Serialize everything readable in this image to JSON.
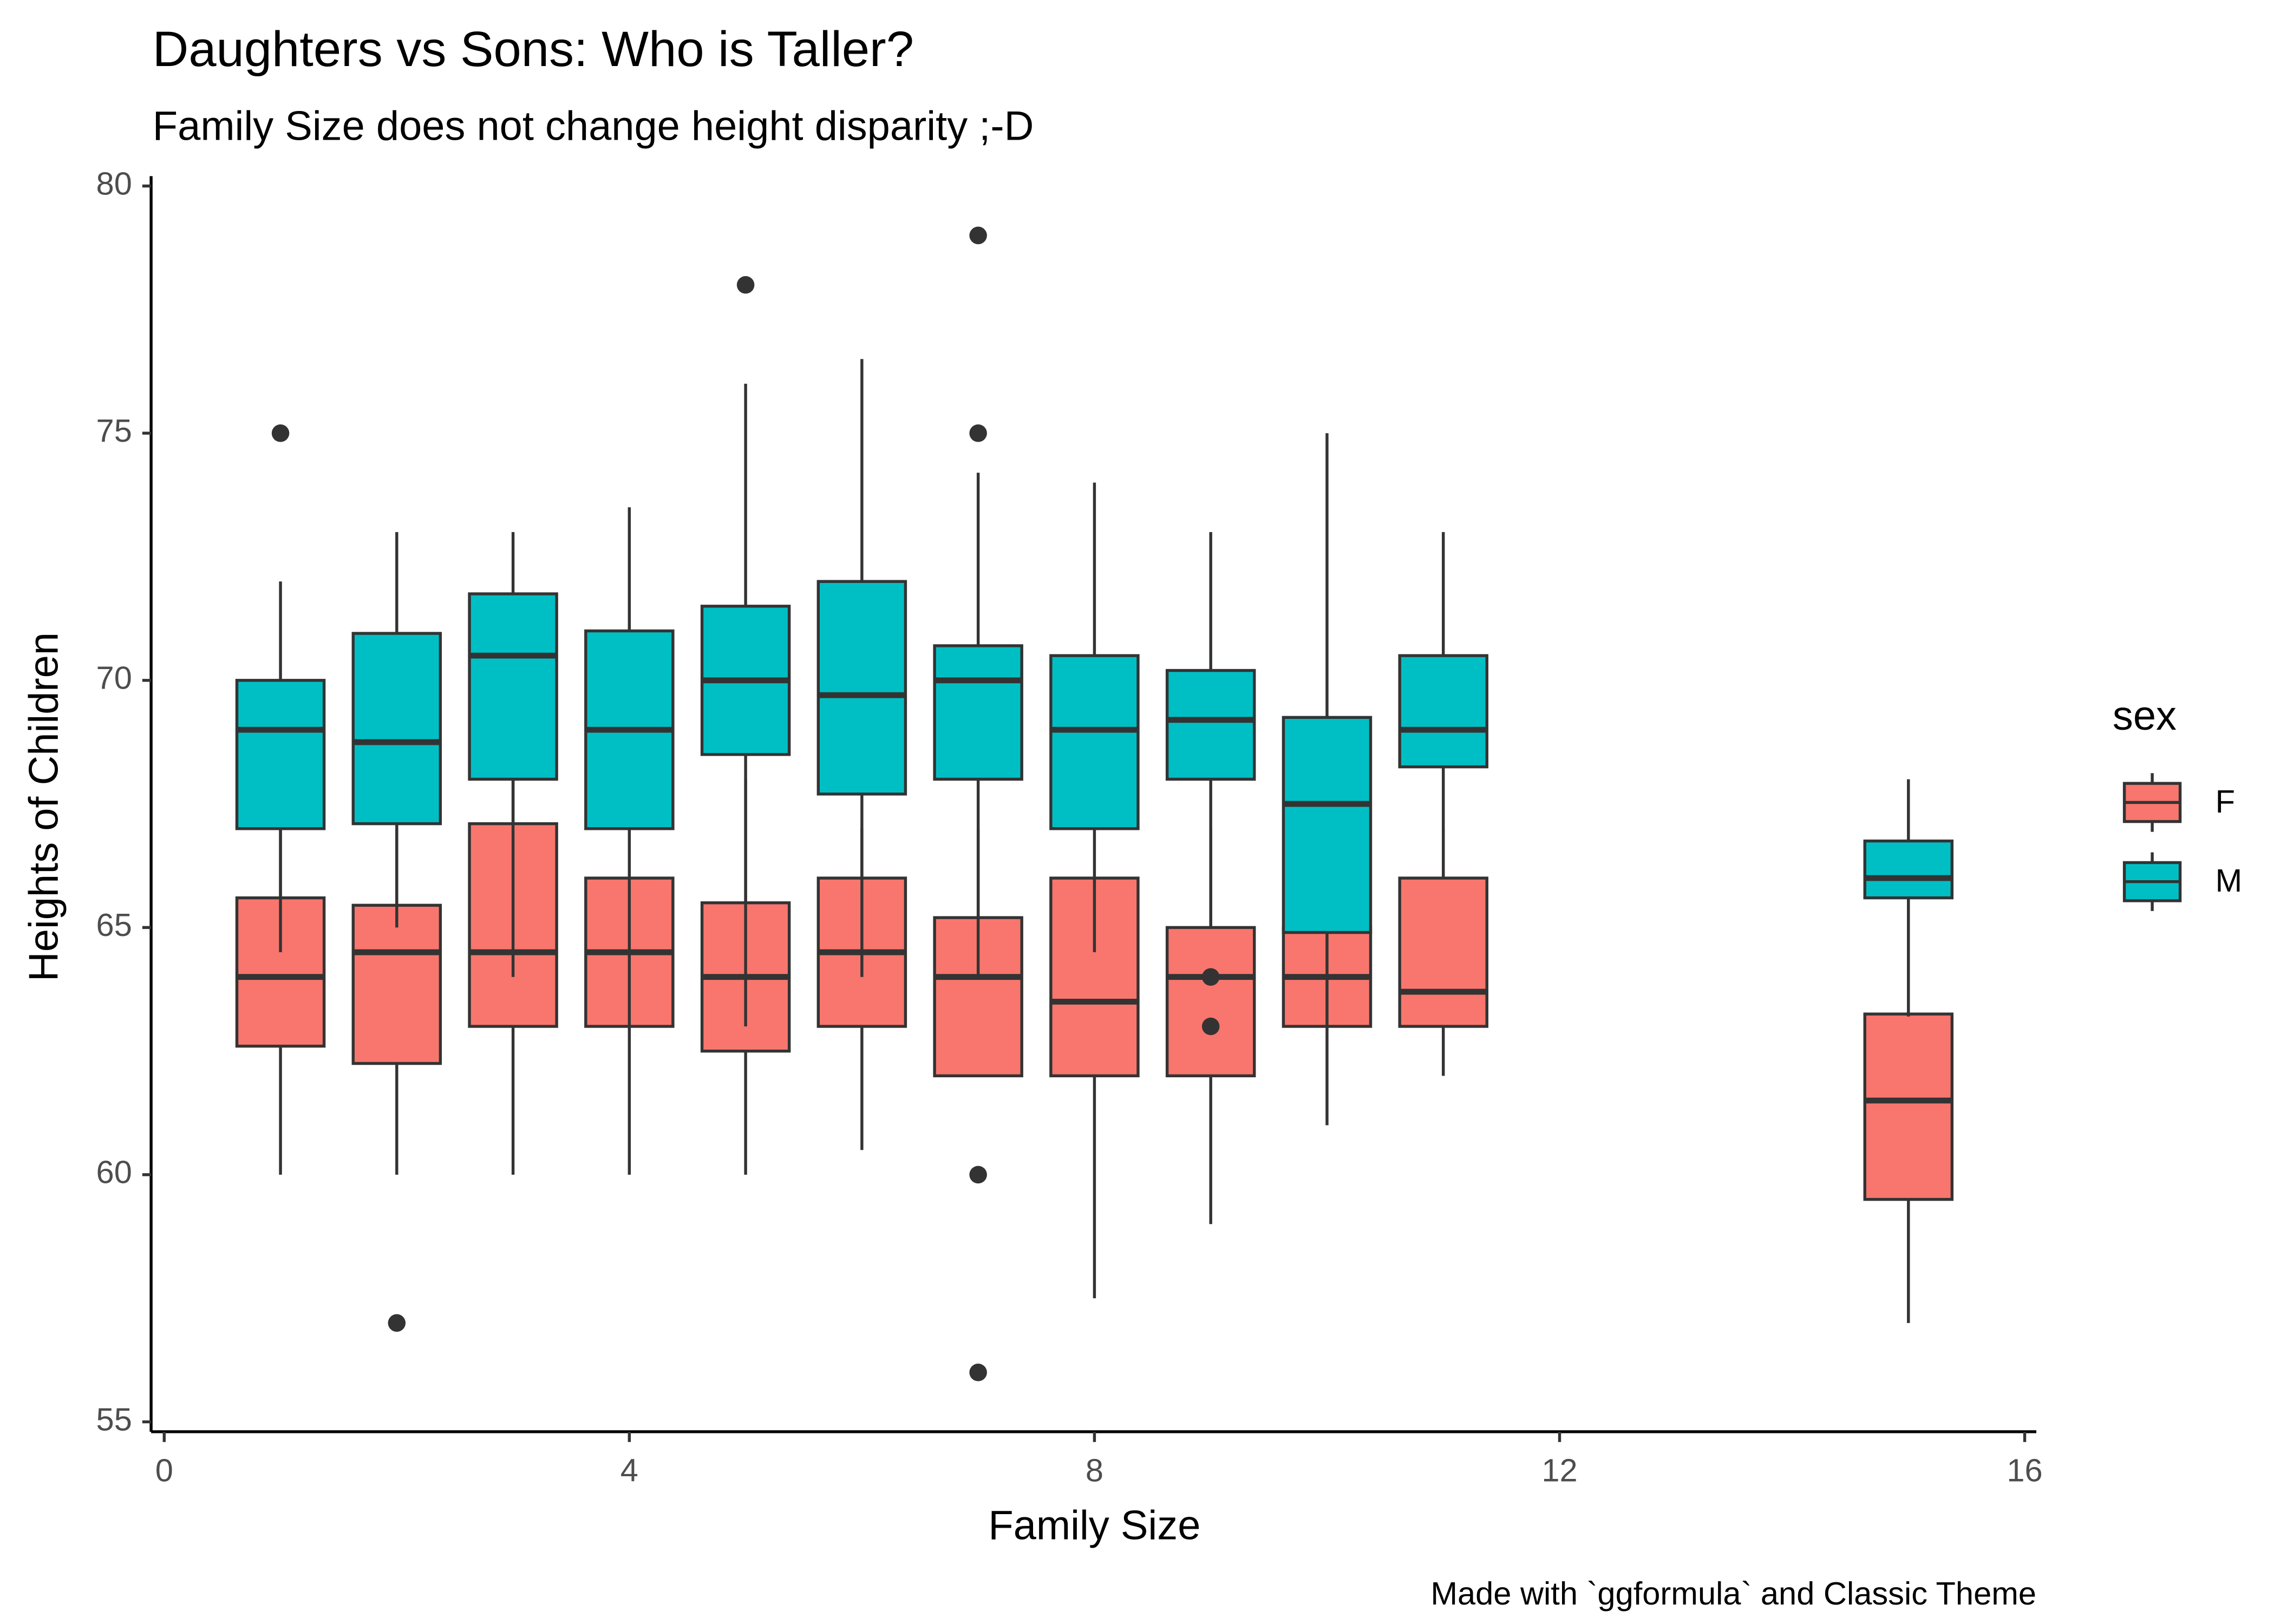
{
  "chart_data": {
    "type": "boxplot",
    "title": "Daughters vs Sons: Who is Taller?",
    "subtitle": "Family Size does not change height disparity ;-D",
    "x_label": "Family Size",
    "y_label": "Heights of Children",
    "caption": "Made with `ggformula` and Classic Theme",
    "legend_title": "sex",
    "legend_position": "right",
    "xlim": [
      -0.1,
      16.1
    ],
    "ylim": [
      54.8,
      80.2
    ],
    "xticks": [
      0,
      4,
      8,
      12,
      16
    ],
    "yticks": [
      55,
      60,
      65,
      70,
      75,
      80
    ],
    "grid": false,
    "series": [
      {
        "name": "F",
        "color": "#f8766d",
        "x": [
          1,
          2,
          3,
          4,
          5,
          6,
          7,
          8,
          9,
          10,
          11,
          15
        ],
        "low": [
          60,
          60,
          60,
          60,
          60,
          60.5,
          62,
          57.5,
          59,
          61,
          62,
          57
        ],
        "q1": [
          62.6,
          62.25,
          63,
          63,
          62.5,
          63,
          62,
          62,
          62,
          63,
          63,
          59.5
        ],
        "median": [
          64,
          64.5,
          64.5,
          64.5,
          64,
          64.5,
          64,
          63.5,
          64,
          64,
          63.7,
          61.5
        ],
        "q3": [
          65.6,
          65.45,
          67.1,
          66,
          65.5,
          66,
          65.2,
          66,
          65,
          65,
          66,
          63.25
        ],
        "high": [
          67,
          67,
          69,
          66,
          68,
          67,
          67,
          66,
          67,
          65,
          67,
          65.6
        ],
        "outliers": [
          [],
          [
            57
          ],
          [],
          [],
          [],
          [],
          [
            60,
            56
          ],
          [],
          [],
          [],
          [],
          []
        ]
      },
      {
        "name": "M",
        "color": "#00bfc4",
        "x": [
          1,
          2,
          3,
          4,
          5,
          6,
          7,
          8,
          9,
          10,
          11,
          15
        ],
        "low": [
          64.5,
          65,
          64,
          63,
          63,
          64,
          64,
          64.5,
          65,
          63,
          66,
          63.2
        ],
        "q1": [
          67,
          67.1,
          68,
          67,
          68.5,
          67.7,
          68,
          67,
          68,
          64.9,
          68.25,
          65.6
        ],
        "median": [
          69,
          68.75,
          70.5,
          69,
          70,
          69.7,
          70,
          69,
          69.2,
          67.5,
          69,
          66
        ],
        "q3": [
          70,
          70.95,
          71.75,
          71,
          71.5,
          72,
          70.7,
          70.5,
          70.2,
          69.25,
          70.5,
          66.75
        ],
        "high": [
          72,
          73,
          73,
          73.5,
          76,
          76.5,
          74.2,
          74,
          73,
          75,
          73,
          68
        ],
        "outliers": [
          [
            75
          ],
          [],
          [],
          [],
          [
            78
          ],
          [],
          [
            75,
            79
          ],
          [],
          [
            64,
            63
          ],
          [],
          [],
          []
        ]
      }
    ]
  }
}
